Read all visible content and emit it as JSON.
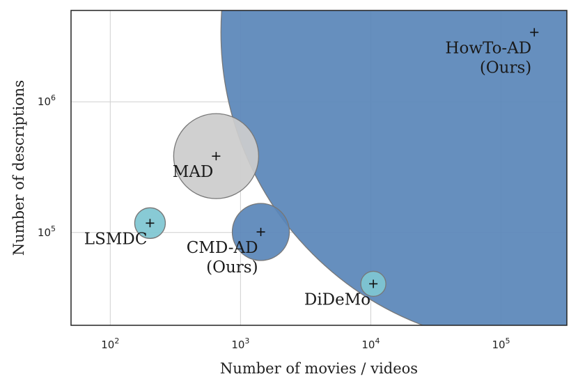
{
  "chart_data": {
    "type": "scatter",
    "title": "",
    "xlabel": "Number of movies / videos",
    "ylabel": "Number of descriptions",
    "x_scale": "log",
    "y_scale": "log",
    "xlim": [
      50,
      320000
    ],
    "ylim": [
      19500,
      5000000
    ],
    "grid": true,
    "x_ticks": [
      {
        "value": 100,
        "exp": "2"
      },
      {
        "value": 1000,
        "exp": "3"
      },
      {
        "value": 10000,
        "exp": "4"
      },
      {
        "value": 100000,
        "exp": "5"
      }
    ],
    "y_ticks": [
      {
        "value": 100000,
        "exp": "5"
      },
      {
        "value": 1000000,
        "exp": "6"
      }
    ],
    "tick_base": "10",
    "points": [
      {
        "name": "LSMDC",
        "label_lines": [
          "LSMDC"
        ],
        "x": 202,
        "y": 118000,
        "color": "#7fc6d2",
        "relative_size": 0.06
      },
      {
        "name": "MAD",
        "label_lines": [
          "MAD"
        ],
        "x": 650,
        "y": 384000,
        "color": "#cccccc",
        "relative_size": 0.16
      },
      {
        "name": "CMD-AD",
        "label_lines": [
          "CMD-AD",
          "(Ours)"
        ],
        "x": 1432,
        "y": 101000,
        "color": "#5a87b9",
        "relative_size": 0.11
      },
      {
        "name": "DiDeMo",
        "label_lines": [
          "DiDeMo"
        ],
        "x": 10464,
        "y": 40500,
        "color": "#7fc6d2",
        "relative_size": 0.05
      },
      {
        "name": "HowTo-AD",
        "label_lines": [
          "HowTo-AD",
          "(Ours)"
        ],
        "x": 180000,
        "y": 3400000,
        "color": "#5a87b9",
        "relative_size": 1.0
      }
    ]
  }
}
